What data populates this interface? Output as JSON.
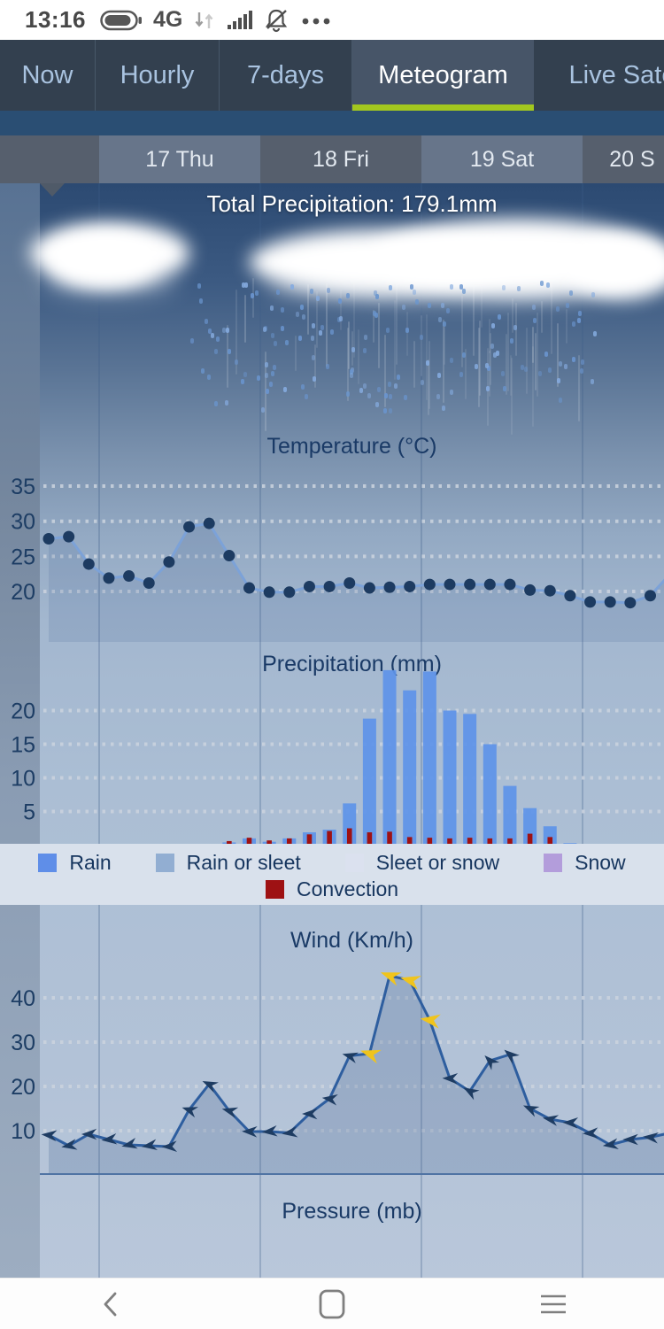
{
  "status_bar": {
    "time": "13:16",
    "network": "4G",
    "icons": [
      "battery-icon",
      "data-arrows-icon",
      "signal-icon",
      "mute-icon",
      "more-icon"
    ]
  },
  "nav": {
    "accent_color": "#a3c71e",
    "tabs": [
      {
        "label": "Now",
        "active": false
      },
      {
        "label": "Hourly",
        "active": false
      },
      {
        "label": "7-days",
        "active": false
      },
      {
        "label": "Meteogram",
        "active": true
      },
      {
        "label": "Live Sate",
        "active": false
      }
    ]
  },
  "day_header": {
    "cells": [
      {
        "label": "",
        "shade": "dark"
      },
      {
        "label": "17 Thu",
        "shade": "light"
      },
      {
        "label": "18 Fri",
        "shade": "dark"
      },
      {
        "label": "19 Sat",
        "shade": "light"
      },
      {
        "label": "20 S",
        "shade": "dark"
      }
    ]
  },
  "meteogram": {
    "total_precipitation_label": "Total Precipitation: 179.1mm"
  },
  "legend": {
    "background": "#d9e1ec",
    "row1": [
      {
        "label": "Rain",
        "color": "#5f8ee8"
      },
      {
        "label": "Rain or sleet",
        "color": "#92aed2"
      },
      {
        "label": "Sleet or snow",
        "color": "#dbe1ef"
      },
      {
        "label": "Snow",
        "color": "#b39ddb"
      }
    ],
    "row2": [
      {
        "label": "Convection",
        "color": "#9e1113"
      }
    ]
  },
  "chart_data": [
    {
      "type": "line",
      "name": "temperature",
      "title": "Temperature (°C)",
      "yticks": [
        35,
        30,
        25,
        20
      ],
      "line_color": "#7ca2d8",
      "point_color": "#1d3b61",
      "values": [
        27.5,
        27.8,
        23.9,
        21.9,
        22.2,
        21.2,
        24.2,
        29.2,
        29.7,
        25.1,
        20.5,
        19.9,
        19.9,
        20.7,
        20.7,
        21.2,
        20.5,
        20.6,
        20.7,
        21,
        21,
        21,
        21,
        21,
        20.2,
        20.1,
        19.4,
        18.5,
        18.5,
        18.4,
        19.4
      ]
    },
    {
      "type": "bar",
      "name": "precipitation",
      "title": "Precipitation (mm)",
      "yticks": [
        20,
        15,
        10,
        5
      ],
      "series": [
        {
          "name": "rain",
          "color": "#5f93e8",
          "values": [
            0,
            0,
            0,
            0,
            0,
            0,
            0,
            0,
            0,
            0.4,
            1,
            0.5,
            1,
            1.9,
            2.3,
            6.2,
            18.8,
            26,
            23,
            25.8,
            20,
            19.5,
            15,
            8.8,
            5.5,
            2.8,
            0.3,
            0,
            0,
            0,
            0
          ]
        },
        {
          "name": "convection",
          "color": "#9e1113",
          "values": [
            0,
            0,
            0,
            0,
            0,
            0,
            0,
            0,
            0,
            0.6,
            1.1,
            0.7,
            1,
            1.6,
            2.1,
            2.5,
            1.9,
            2,
            1.2,
            1.1,
            1,
            1.1,
            1,
            1,
            1.7,
            1.2,
            0,
            0,
            0,
            0,
            0
          ]
        }
      ]
    },
    {
      "type": "line",
      "name": "wind",
      "title": "Wind (Km/h)",
      "yticks": [
        40,
        30,
        20,
        10
      ],
      "line_color": "#2e5e9f",
      "arrow_color": "#1e3c62",
      "strong_arrow_color": "#f0c41c",
      "values": [
        9,
        6.6,
        9.2,
        8,
        6.8,
        6.6,
        6.4,
        14.7,
        20.5,
        14.5,
        9.8,
        9.8,
        9.5,
        13.8,
        17.2,
        26.9,
        27.4,
        45,
        44,
        35,
        21.8,
        18.9,
        25.8,
        27.2,
        15,
        12.6,
        11.8,
        9.4,
        6.8,
        8,
        8.5
      ],
      "directions_deg": [
        275,
        260,
        270,
        265,
        258,
        262,
        268,
        288,
        295,
        285,
        272,
        265,
        262,
        270,
        278,
        285,
        288,
        290,
        285,
        278,
        272,
        300,
        315,
        310,
        295,
        280,
        272,
        268,
        262,
        270,
        275
      ],
      "strong_indices": [
        16,
        17,
        18,
        19
      ]
    },
    {
      "type": "line",
      "name": "pressure",
      "title": "Pressure (mb)",
      "values": []
    }
  ],
  "bottom_nav": {
    "buttons": [
      {
        "name": "back-button",
        "icon": "chevron-left-icon"
      },
      {
        "name": "home-button",
        "icon": "home-square-icon"
      },
      {
        "name": "recents-button",
        "icon": "menu-lines-icon"
      }
    ]
  }
}
